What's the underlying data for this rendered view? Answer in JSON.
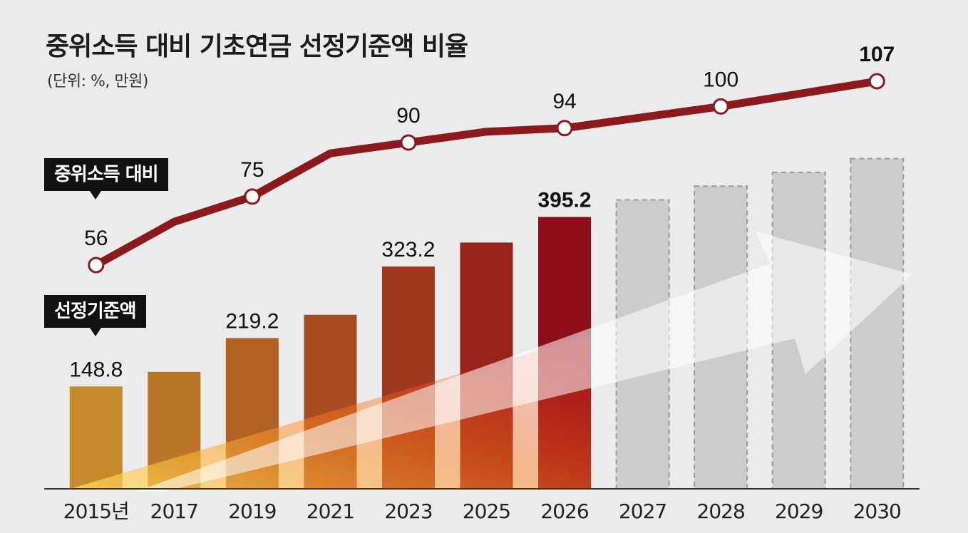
{
  "title": "중위소득 대비 기초연금 선정기준액 비율",
  "unit": "(단위: %, 만원)",
  "badges": {
    "ratio": "중위소득 대비",
    "amount": "선정기준액"
  },
  "colors": {
    "line": "#8b1a1f",
    "bar_start": "#c48a2c",
    "bar_end": "#8e0e18",
    "projected_bar": "#cccccc",
    "axis": "#333333"
  },
  "chart_data": [
    {
      "type": "line",
      "name": "중위소득 대비",
      "categories": [
        "2015년",
        "2017",
        "2019",
        "2021",
        "2023",
        "2025",
        "2026",
        "2027",
        "2028",
        "2029",
        "2030"
      ],
      "markers": [
        {
          "category": "2015년",
          "value": 56
        },
        {
          "category": "2019",
          "value": 75
        },
        {
          "category": "2023",
          "value": 90
        },
        {
          "category": "2026",
          "value": 94
        },
        {
          "category": "2028",
          "value": 100
        },
        {
          "category": "2030",
          "value": 107
        }
      ],
      "unlabeled_points": [
        {
          "category": "2017",
          "value": 68
        },
        {
          "category": "2021",
          "value": 87
        },
        {
          "category": "2025",
          "value": 93
        }
      ],
      "ylim": [
        40,
        115
      ]
    },
    {
      "type": "bar",
      "name": "선정기준액",
      "categories": [
        "2015년",
        "2017",
        "2019",
        "2021",
        "2023",
        "2025",
        "2026",
        "2027",
        "2028",
        "2029",
        "2030"
      ],
      "values": [
        148.8,
        170,
        219.2,
        253,
        323.2,
        358,
        395.2,
        420,
        440,
        460,
        480
      ],
      "labels": [
        "148.8",
        "",
        "219.2",
        "",
        "323.2",
        "",
        "395.2",
        "",
        "",
        "",
        ""
      ],
      "projected": [
        false,
        false,
        false,
        false,
        false,
        false,
        false,
        true,
        true,
        true,
        true
      ],
      "ylim": [
        0,
        550
      ]
    }
  ]
}
